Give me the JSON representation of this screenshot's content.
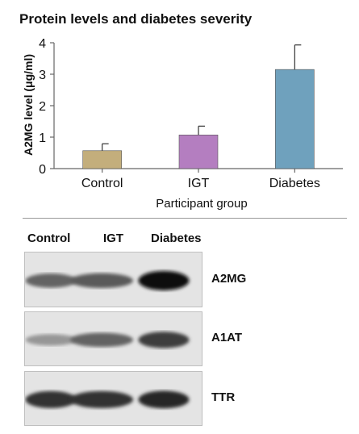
{
  "chart_data": {
    "type": "bar",
    "title": "Protein levels and diabetes severity",
    "xlabel": "Participant group",
    "ylabel": "A2MG level (μg/ml)",
    "categories": [
      "Control",
      "IGT",
      "Diabetes"
    ],
    "values": [
      0.57,
      1.07,
      3.15
    ],
    "errors": [
      0.22,
      0.28,
      0.78
    ],
    "colors": [
      "#c3ae7c",
      "#b47ec0",
      "#6fa1bd"
    ],
    "ylim": [
      0,
      4
    ],
    "yticks": [
      "0",
      "1",
      "2",
      "3",
      "4"
    ],
    "grid": false
  },
  "blot": {
    "columns": [
      "Control",
      "IGT",
      "Diabetes"
    ],
    "panels": [
      {
        "label": "A2MG",
        "intensity": [
          0.55,
          0.6,
          1.0
        ]
      },
      {
        "label": "A1AT",
        "intensity": [
          0.3,
          0.55,
          0.75
        ]
      },
      {
        "label": "TTR",
        "intensity": [
          0.8,
          0.8,
          0.85
        ]
      }
    ]
  }
}
